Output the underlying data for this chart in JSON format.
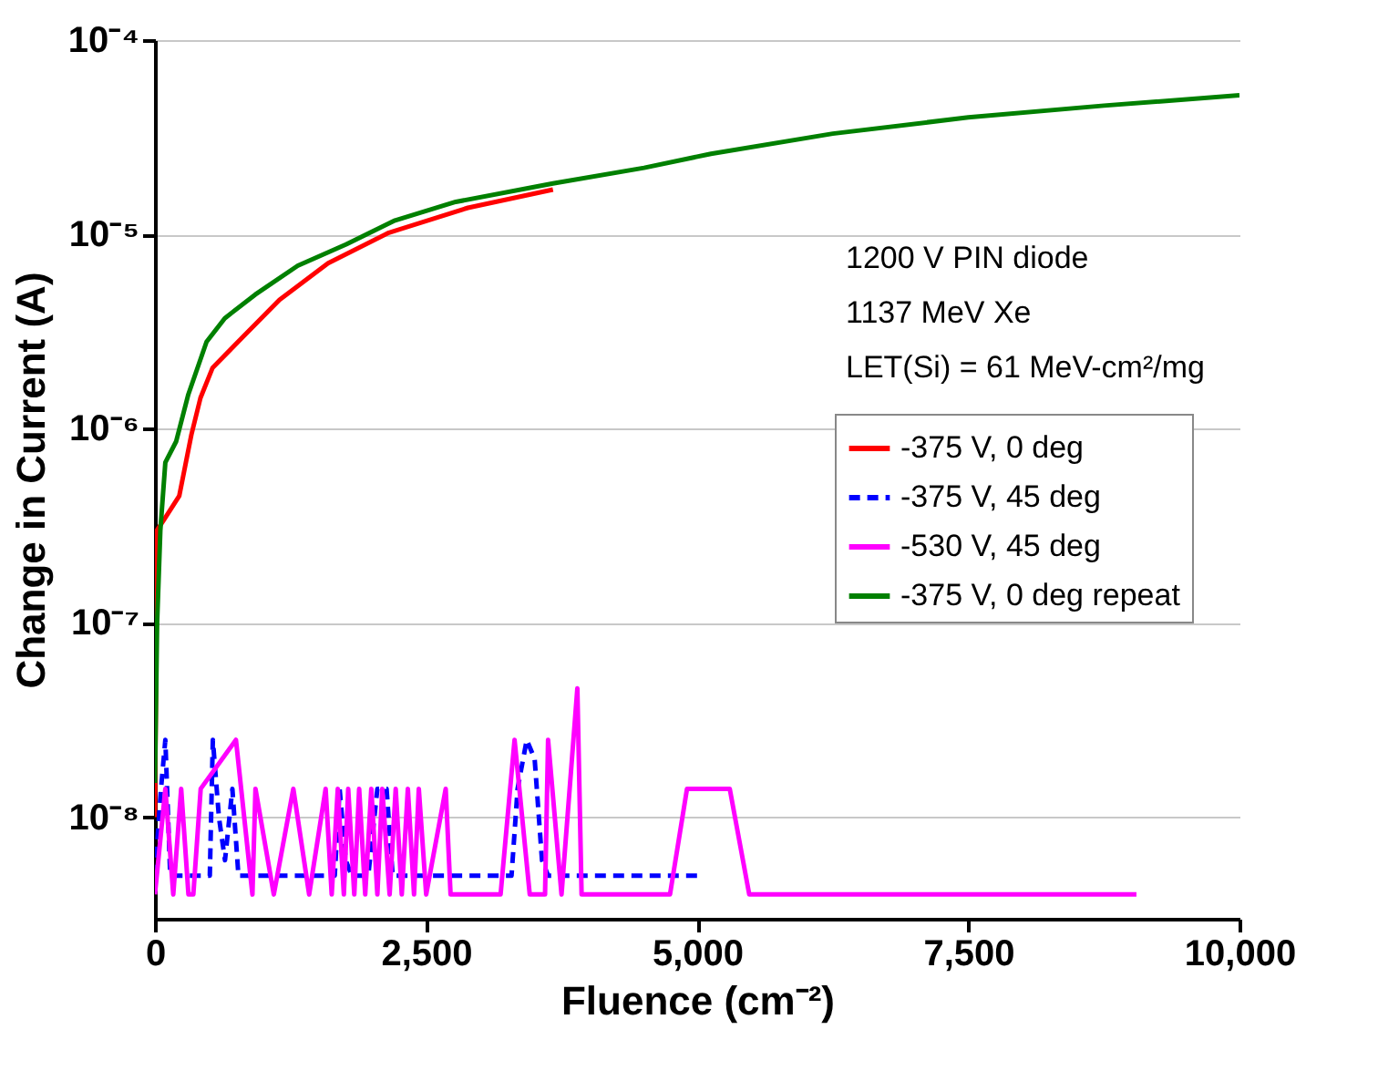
{
  "chart_data": {
    "type": "line",
    "xlabel": "Fluence (cm⁻²)",
    "ylabel": "Change in Current (A)",
    "annotations": [
      "1200 V PIN diode",
      "1137 MeV Xe",
      "LET(Si) = 61 MeV-cm²/mg"
    ],
    "log": "y",
    "grid": "y",
    "legend": "right",
    "line_style": "solid",
    "marker": "none",
    "xlim": [
      0,
      10000
    ],
    "xticks": [
      0,
      {
        "value": 2500,
        "label": "2,500"
      },
      {
        "value": 5000,
        "label": "5,000"
      },
      {
        "value": 7500,
        "label": "7,500"
      },
      {
        "value": 10000,
        "label": "10,000"
      }
    ],
    "ylim": [
      3e-09,
      0.0001
    ],
    "yticks": [
      {
        "value": 1e-08,
        "label": "10⁻⁸"
      },
      {
        "value": 1e-07,
        "label": "10⁻⁷"
      },
      {
        "value": 1e-06,
        "label": "10⁻⁶"
      },
      {
        "value": 1e-05,
        "label": "10⁻⁵"
      },
      {
        "value": 0.0001,
        "label": "10⁻⁴"
      }
    ],
    "series": [
      {
        "name": "-375 V, 0 deg",
        "color": "#ff0000",
        "x": [
          0,
          20,
          84,
          224,
          336,
          420,
          532,
          812,
          1148,
          1597,
          2157,
          2886,
          3670
        ],
        "values": [
          1e-08,
          3e-07,
          3.4e-07,
          4.5e-07,
          9.3e-07,
          1.44e-06,
          2.06e-06,
          2.97e-06,
          4.6e-06,
          7.1e-06,
          1.02e-05,
          1.37e-05,
          1.7e-05
        ]
      },
      {
        "name": "-375 V, 45 deg",
        "color": "#0000ff",
        "line_style": "dashed",
        "x": [
          0,
          56,
          96,
          141,
          506,
          534,
          590,
          646,
          714,
          770,
          1658,
          1703,
          1759,
          1815,
          1967,
          2051,
          2136,
          2192,
          3288,
          3344,
          3428,
          3501,
          3569,
          3625,
          5030
        ],
        "values": [
          5e-09,
          1.4e-08,
          2.5e-08,
          5e-09,
          5e-09,
          2.5e-08,
          1e-08,
          6e-09,
          1.4e-08,
          5e-09,
          5e-09,
          1.4e-08,
          6e-09,
          5e-09,
          5e-09,
          1.4e-08,
          1.4e-08,
          5e-09,
          5e-09,
          1.4e-08,
          2.5e-08,
          2e-08,
          6e-09,
          5e-09,
          5e-09
        ]
      },
      {
        "name": "-530 V, 45 deg",
        "color": "#ff00ff",
        "x": [
          0,
          96,
          169,
          242,
          309,
          354,
          422,
          747,
          899,
          927,
          1096,
          1276,
          1422,
          1574,
          1630,
          1686,
          1742,
          1782,
          1838,
          1883,
          1939,
          1995,
          2051,
          2096,
          2164,
          2220,
          2276,
          2332,
          2389,
          2433,
          2501,
          2681,
          2726,
          3187,
          3316,
          3456,
          3597,
          3625,
          3749,
          3895,
          3934,
          4749,
          4906,
          5300,
          5480,
          9050
        ],
        "values": [
          4e-09,
          1.4e-08,
          4e-09,
          1.4e-08,
          4e-09,
          4e-09,
          1.4e-08,
          2.5e-08,
          4e-09,
          1.4e-08,
          4e-09,
          1.4e-08,
          4e-09,
          1.4e-08,
          4e-09,
          1.4e-08,
          4e-09,
          1.4e-08,
          4e-09,
          1.4e-08,
          4e-09,
          1.4e-08,
          4e-09,
          1.4e-08,
          4e-09,
          1.4e-08,
          4e-09,
          1.4e-08,
          4e-09,
          1.4e-08,
          4e-09,
          1.4e-08,
          4e-09,
          4e-09,
          2.5e-08,
          4e-09,
          4e-09,
          2.5e-08,
          4e-09,
          4.6e-08,
          4e-09,
          4e-09,
          1.4e-08,
          1.4e-08,
          4e-09,
          4e-09
        ]
      },
      {
        "name": "-375 V, 0 deg repeat",
        "color": "#008000",
        "x": [
          0,
          20,
          50,
          96,
          196,
          308,
          476,
          644,
          925,
          1317,
          1765,
          2214,
          2774,
          3670,
          4510,
          5127,
          6250,
          7500,
          8750,
          10000
        ],
        "values": [
          1.5e-08,
          1e-07,
          3e-07,
          6.7e-07,
          8.6e-07,
          1.5e-06,
          2.8e-06,
          3.7e-06,
          4.9e-06,
          6.9e-06,
          8.9e-06,
          1.18e-05,
          1.47e-05,
          1.83e-05,
          2.2e-05,
          2.6e-05,
          3.3e-05,
          4e-05,
          4.6e-05,
          5.2e-05
        ]
      }
    ]
  }
}
